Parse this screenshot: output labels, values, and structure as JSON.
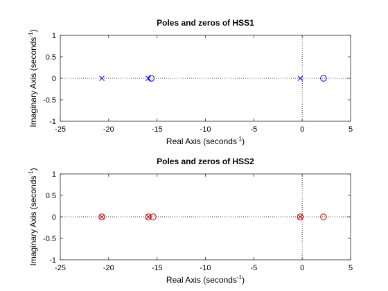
{
  "chart_data": [
    {
      "type": "scatter",
      "title": "Poles and zeros of HSS1",
      "xlabel": {
        "prefix": "Real Axis (seconds",
        "exp": "-1",
        "suffix": ")"
      },
      "ylabel": {
        "prefix": "Imaginary Axis (seconds",
        "exp": "-1",
        "suffix": ")"
      },
      "xlim": [
        -25,
        5
      ],
      "ylim": [
        -1,
        1
      ],
      "xticks": [
        -25,
        -20,
        -15,
        -10,
        -5,
        0,
        5
      ],
      "yticks": [
        -1,
        -0.5,
        0,
        0.5,
        1
      ],
      "xtick_labels": [
        "-25",
        "-20",
        "-15",
        "-10",
        "-5",
        "0",
        "5"
      ],
      "ytick_labels": [
        "-1",
        "-0.5",
        "0",
        "0.5",
        "1"
      ],
      "grid": false,
      "reference_lines": {
        "x": 0,
        "y": 0,
        "style": "dotted"
      },
      "series": [
        {
          "marker": "x",
          "color": "#0000ff",
          "points": [
            [
              -20.7,
              0
            ],
            [
              -15.9,
              0
            ],
            [
              -0.2,
              0
            ]
          ]
        },
        {
          "marker": "o",
          "color": "#0000ff",
          "points": [
            [
              -15.6,
              0
            ],
            [
              2.2,
              0
            ]
          ]
        }
      ]
    },
    {
      "type": "scatter",
      "title": "Poles and zeros of HSS2",
      "xlabel": {
        "prefix": "Real Axis (seconds",
        "exp": "-1",
        "suffix": ")"
      },
      "ylabel": {
        "prefix": "Imaginary Axis (seconds",
        "exp": "-1",
        "suffix": ")"
      },
      "xlim": [
        -25,
        5
      ],
      "ylim": [
        -1,
        1
      ],
      "xticks": [
        -25,
        -20,
        -15,
        -10,
        -5,
        0,
        5
      ],
      "yticks": [
        -1,
        -0.5,
        0,
        0.5,
        1
      ],
      "xtick_labels": [
        "-25",
        "-20",
        "-15",
        "-10",
        "-5",
        "0",
        "5"
      ],
      "ytick_labels": [
        "-1",
        "-0.5",
        "0",
        "0.5",
        "1"
      ],
      "grid": false,
      "reference_lines": {
        "x": 0,
        "y": 0,
        "style": "dotted"
      },
      "series": [
        {
          "marker": "x",
          "color": "#cc0000",
          "points": [
            [
              -20.7,
              0
            ],
            [
              -15.9,
              0
            ],
            [
              -0.2,
              0
            ]
          ]
        },
        {
          "marker": "o",
          "color": "#cc0000",
          "points": [
            [
              -20.7,
              0
            ],
            [
              -15.9,
              0
            ],
            [
              -15.4,
              0
            ],
            [
              -0.2,
              0
            ],
            [
              2.2,
              0
            ]
          ]
        }
      ]
    }
  ]
}
